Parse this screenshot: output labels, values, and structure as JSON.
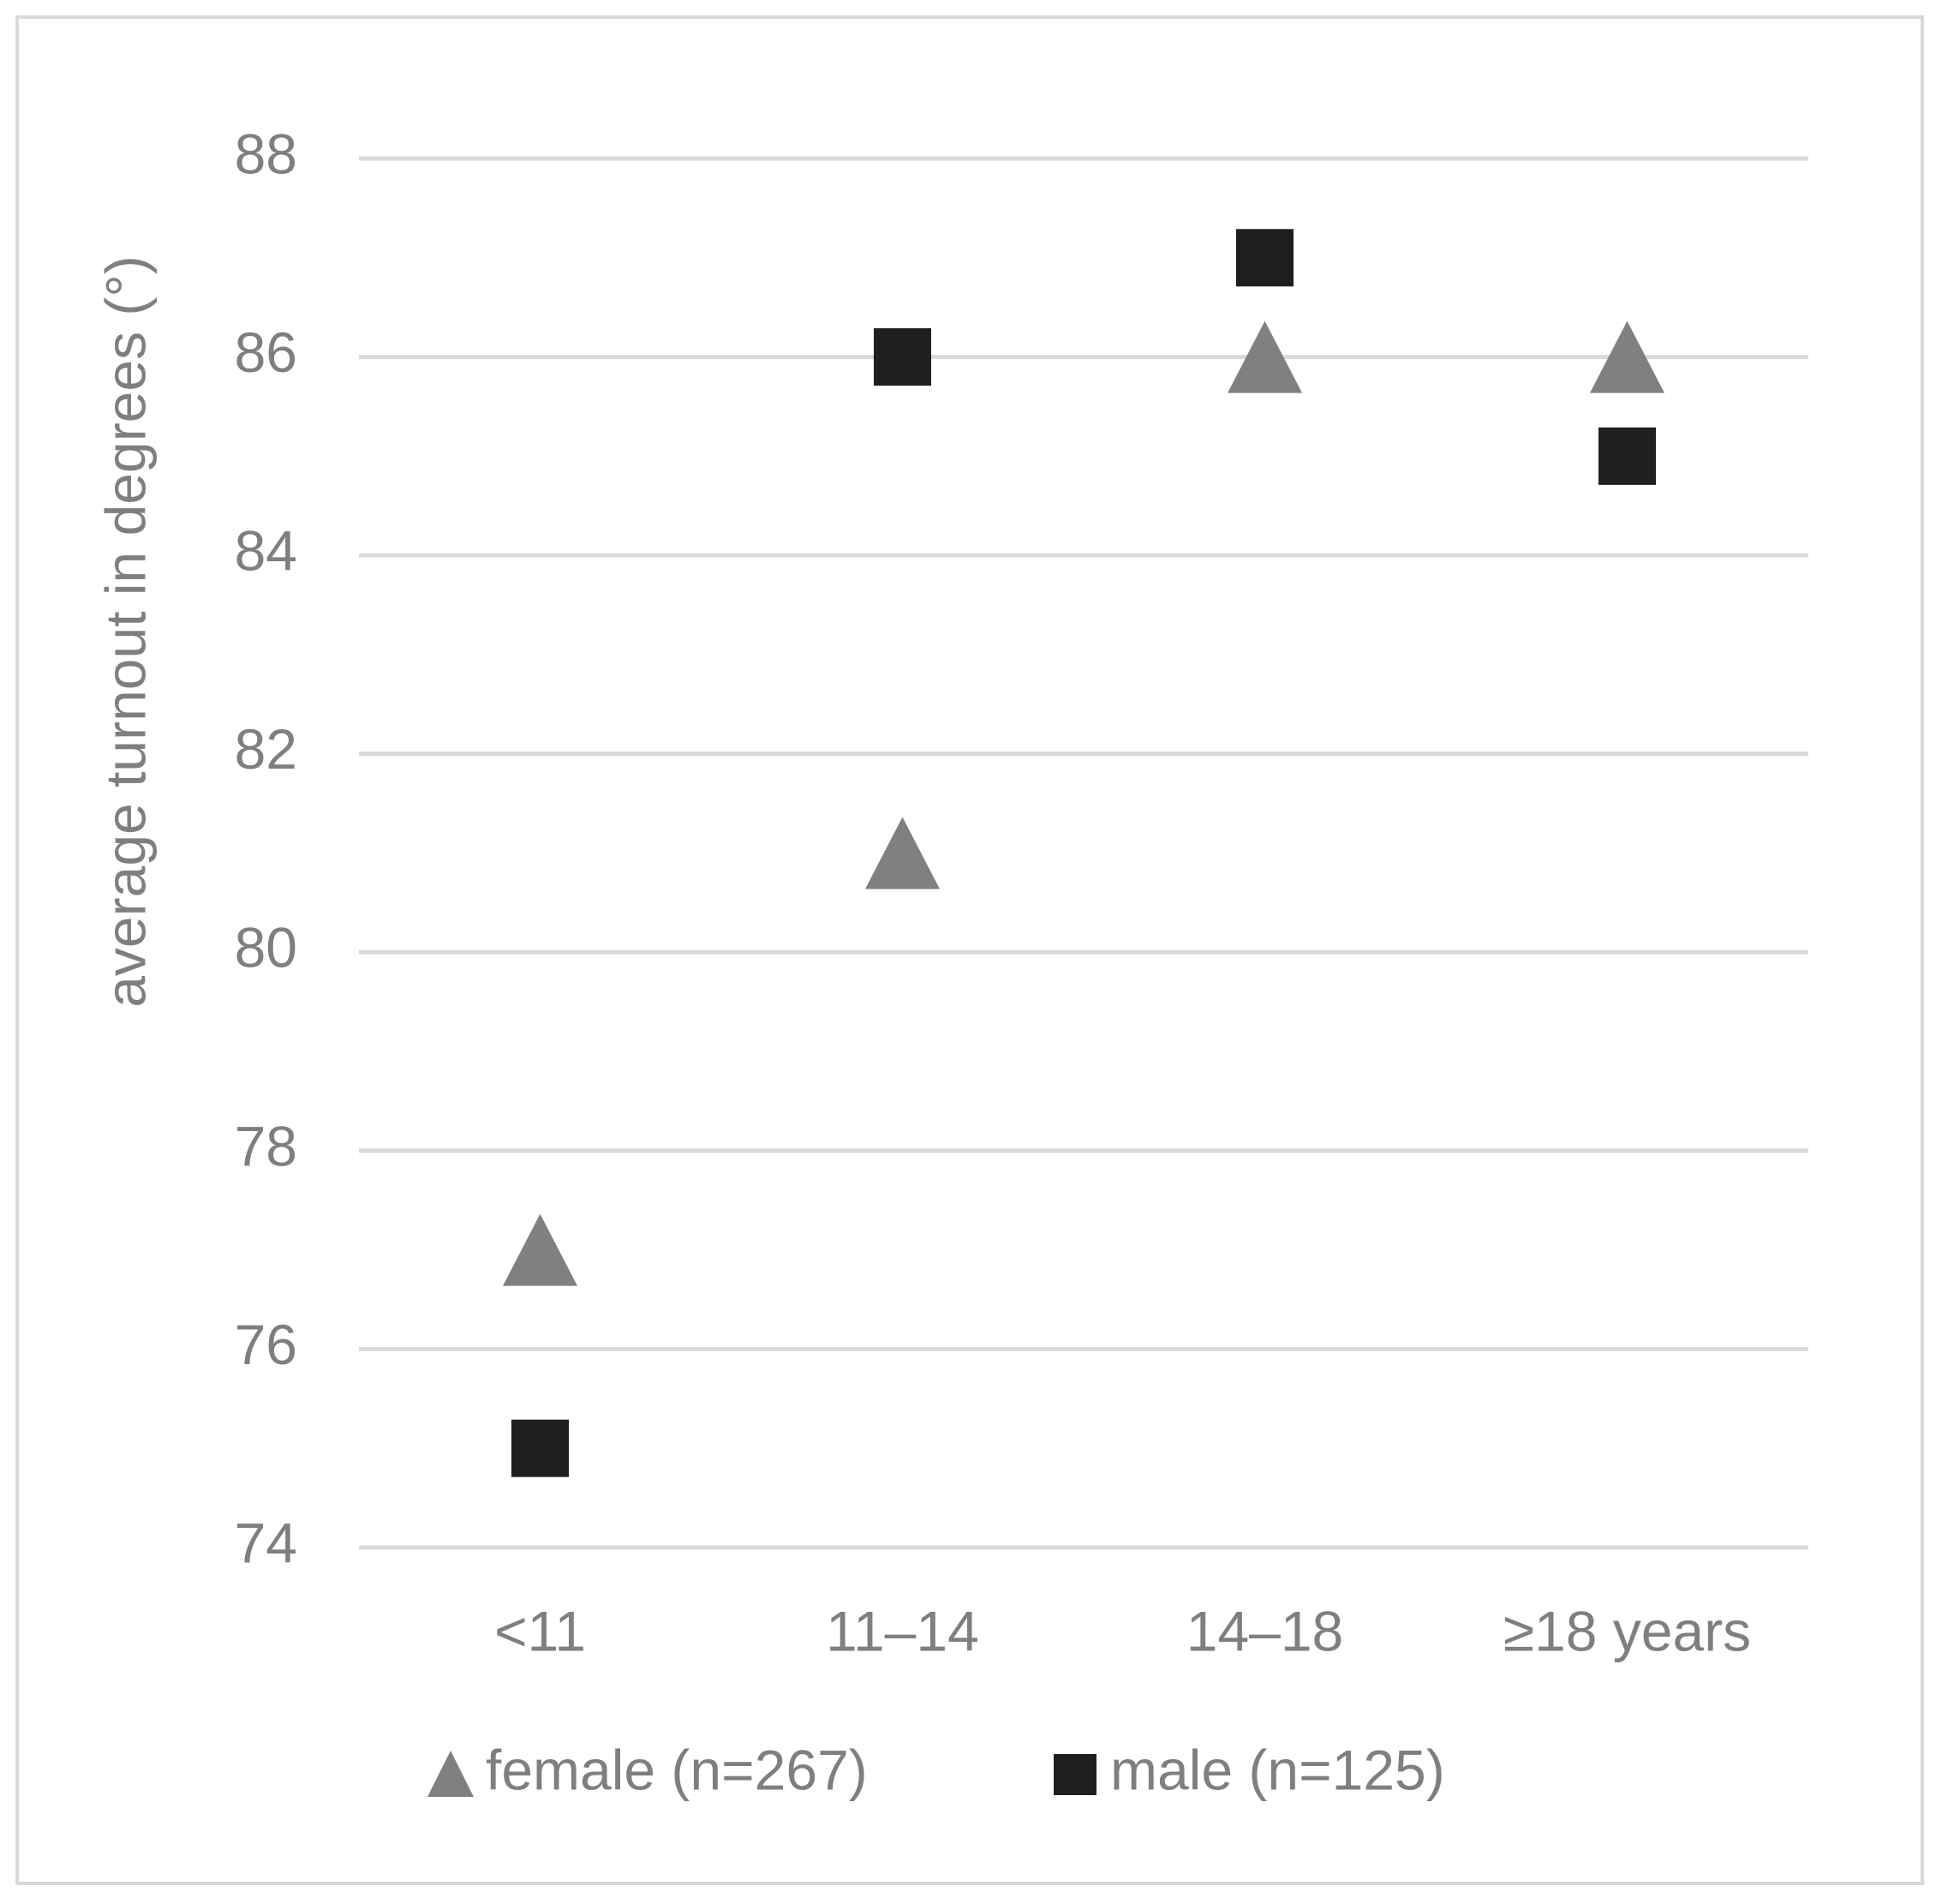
{
  "chart_data": {
    "type": "scatter",
    "y_label": "average turnout in degrees (°)",
    "categories": [
      "<11",
      "11–14",
      "14–18",
      "≥18 years"
    ],
    "series": [
      {
        "name": "female (n=267)",
        "color": "#808080",
        "marker": "triangle",
        "values": [
          77,
          81,
          86,
          86
        ]
      },
      {
        "name": "male (n=125)",
        "color": "#1f1f1f",
        "marker": "square",
        "values": [
          75,
          86,
          87,
          85
        ]
      }
    ],
    "ylim": [
      74,
      88
    ],
    "yticks": [
      74,
      76,
      78,
      80,
      82,
      84,
      86,
      88
    ],
    "grid": true
  }
}
